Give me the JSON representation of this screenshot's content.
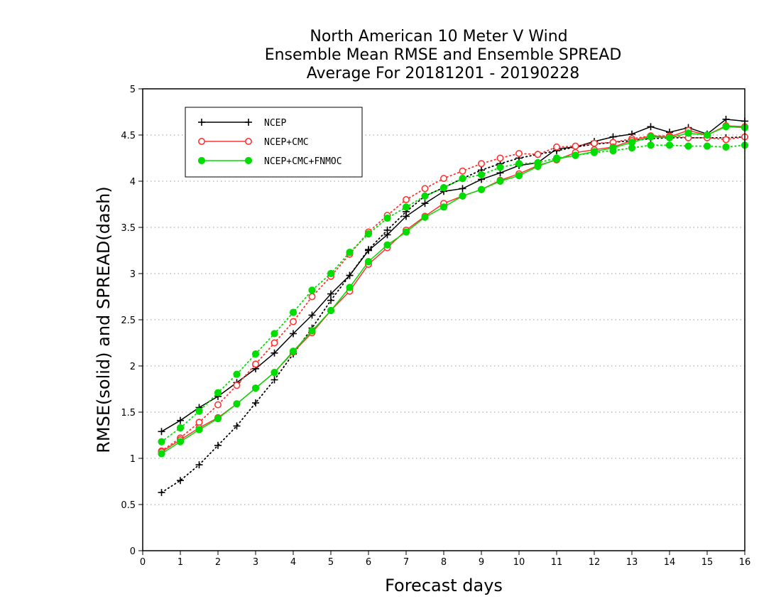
{
  "chart_data": {
    "type": "line",
    "title_lines": [
      "North American 10 Meter V Wind",
      "Ensemble Mean RMSE and Ensemble SPREAD",
      "Average For 20181201 - 20190228"
    ],
    "xlabel": "Forecast days",
    "ylabel": "RMSE(solid) and SPREAD(dash)",
    "xlim": [
      0,
      16
    ],
    "ylim": [
      0,
      5
    ],
    "x_ticks": [
      "0",
      "1",
      "2",
      "3",
      "4",
      "5",
      "6",
      "7",
      "8",
      "9",
      "10",
      "11",
      "12",
      "13",
      "14",
      "15",
      "16"
    ],
    "y_ticks": [
      "0",
      "0.5",
      "1",
      "1.5",
      "2",
      "2.5",
      "3",
      "3.5",
      "4",
      "4.5",
      "5"
    ],
    "grid": "horizontal dotted",
    "legend_position": "top-left",
    "x": [
      0.5,
      1,
      1.5,
      2,
      2.5,
      3,
      3.5,
      4,
      4.5,
      5,
      5.5,
      6,
      6.5,
      7,
      7.5,
      8,
      8.5,
      9,
      9.5,
      10,
      10.5,
      11,
      11.5,
      12,
      12.5,
      13,
      13.5,
      14,
      14.5,
      15,
      15.5,
      16
    ],
    "series": [
      {
        "name": "NCEP",
        "color": "#000000",
        "marker": "plus",
        "rmse": [
          1.29,
          1.41,
          1.55,
          1.67,
          1.82,
          1.97,
          2.14,
          2.35,
          2.55,
          2.78,
          2.98,
          3.25,
          3.42,
          3.62,
          3.76,
          3.89,
          3.92,
          4.02,
          4.09,
          4.17,
          4.2,
          4.35,
          4.37,
          4.43,
          4.48,
          4.51,
          4.59,
          4.53,
          4.58,
          4.51,
          4.67,
          4.65
        ],
        "spread": [
          0.63,
          0.76,
          0.93,
          1.14,
          1.35,
          1.6,
          1.85,
          2.13,
          2.41,
          2.71,
          2.98,
          3.26,
          3.47,
          3.67,
          3.84,
          3.93,
          4.03,
          4.12,
          4.19,
          4.25,
          4.29,
          4.33,
          4.37,
          4.4,
          4.42,
          4.44,
          4.46,
          4.47,
          4.47,
          4.47,
          4.47,
          4.48
        ]
      },
      {
        "name": "NCEP+CMC",
        "color": "#ff3333",
        "marker": "open-circle",
        "rmse": [
          1.07,
          1.2,
          1.33,
          1.44,
          1.59,
          1.76,
          1.93,
          2.15,
          2.36,
          2.6,
          2.81,
          3.1,
          3.28,
          3.47,
          3.62,
          3.76,
          3.84,
          3.91,
          4.01,
          4.08,
          4.17,
          4.23,
          4.31,
          4.34,
          4.37,
          4.44,
          4.49,
          4.48,
          4.55,
          4.5,
          4.6,
          4.59
        ],
        "spread": [
          1.08,
          1.22,
          1.39,
          1.58,
          1.79,
          2.02,
          2.25,
          2.48,
          2.75,
          2.97,
          3.21,
          3.45,
          3.63,
          3.8,
          3.92,
          4.03,
          4.11,
          4.19,
          4.25,
          4.3,
          4.29,
          4.37,
          4.38,
          4.41,
          4.42,
          4.46,
          4.49,
          4.49,
          4.47,
          4.47,
          4.45,
          4.48
        ]
      },
      {
        "name": "NCEP+CMC+FNMOC",
        "color": "#00dd00",
        "marker": "filled-circle",
        "rmse": [
          1.05,
          1.18,
          1.31,
          1.43,
          1.59,
          1.76,
          1.93,
          2.16,
          2.38,
          2.6,
          2.85,
          3.13,
          3.31,
          3.45,
          3.61,
          3.72,
          3.84,
          3.91,
          4.0,
          4.06,
          4.16,
          4.24,
          4.28,
          4.32,
          4.36,
          4.42,
          4.48,
          4.47,
          4.52,
          4.5,
          4.59,
          4.58
        ],
        "spread": [
          1.18,
          1.33,
          1.51,
          1.71,
          1.91,
          2.13,
          2.35,
          2.58,
          2.82,
          3.0,
          3.23,
          3.43,
          3.6,
          3.72,
          3.84,
          3.93,
          4.03,
          4.07,
          4.15,
          4.19,
          4.2,
          4.25,
          4.28,
          4.31,
          4.33,
          4.36,
          4.39,
          4.39,
          4.38,
          4.38,
          4.37,
          4.39
        ]
      }
    ]
  }
}
